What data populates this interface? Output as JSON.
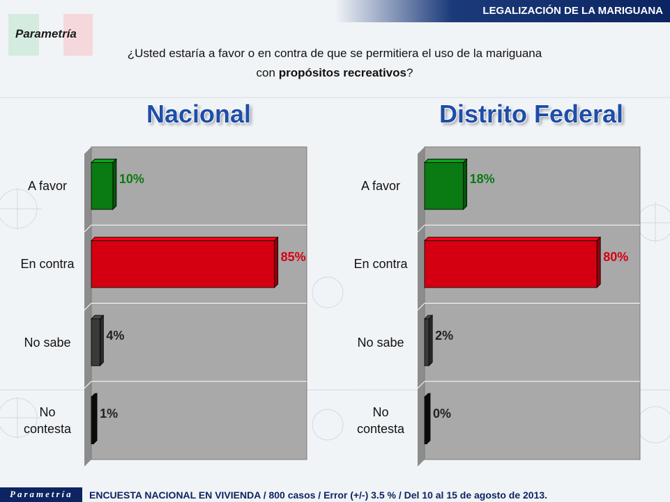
{
  "header": {
    "title": "LEGALIZACIÓN DE LA MARIGUANA"
  },
  "logo": {
    "text": "Parametría"
  },
  "question": {
    "line1": "¿Usted estaría a favor o en contra de que se permitiera el uso de la mariguana",
    "line2_prefix": "con ",
    "line2_bold": "propósitos recreativos",
    "line2_suffix": "?"
  },
  "colors": {
    "a_favor": "#0a7a12",
    "en_contra": "#d40012",
    "no_sabe": "#3a3a3a",
    "no_contesta": "#111111",
    "title": "#1f4ea8"
  },
  "chart_data": [
    {
      "type": "bar",
      "orientation": "horizontal",
      "title": "Nacional",
      "categories": [
        "A favor",
        "En contra",
        "No sabe",
        "No contesta"
      ],
      "values": [
        10,
        85,
        4,
        1
      ],
      "value_labels": [
        "10%",
        "85%",
        "4%",
        "1%"
      ],
      "xlim": [
        0,
        100
      ]
    },
    {
      "type": "bar",
      "orientation": "horizontal",
      "title": "Distrito Federal",
      "categories": [
        "A favor",
        "En contra",
        "No sabe",
        "No contesta"
      ],
      "values": [
        18,
        80,
        2,
        0
      ],
      "value_labels": [
        "18%",
        "80%",
        "2%",
        "0%"
      ],
      "xlim": [
        0,
        100
      ]
    }
  ],
  "footer": {
    "logo_text": "Parametría",
    "text": "ENCUESTA NACIONAL EN VIVIENDA / 800 casos / Error (+/-) 3.5 % / Del 10 al 15 de agosto de 2013."
  }
}
